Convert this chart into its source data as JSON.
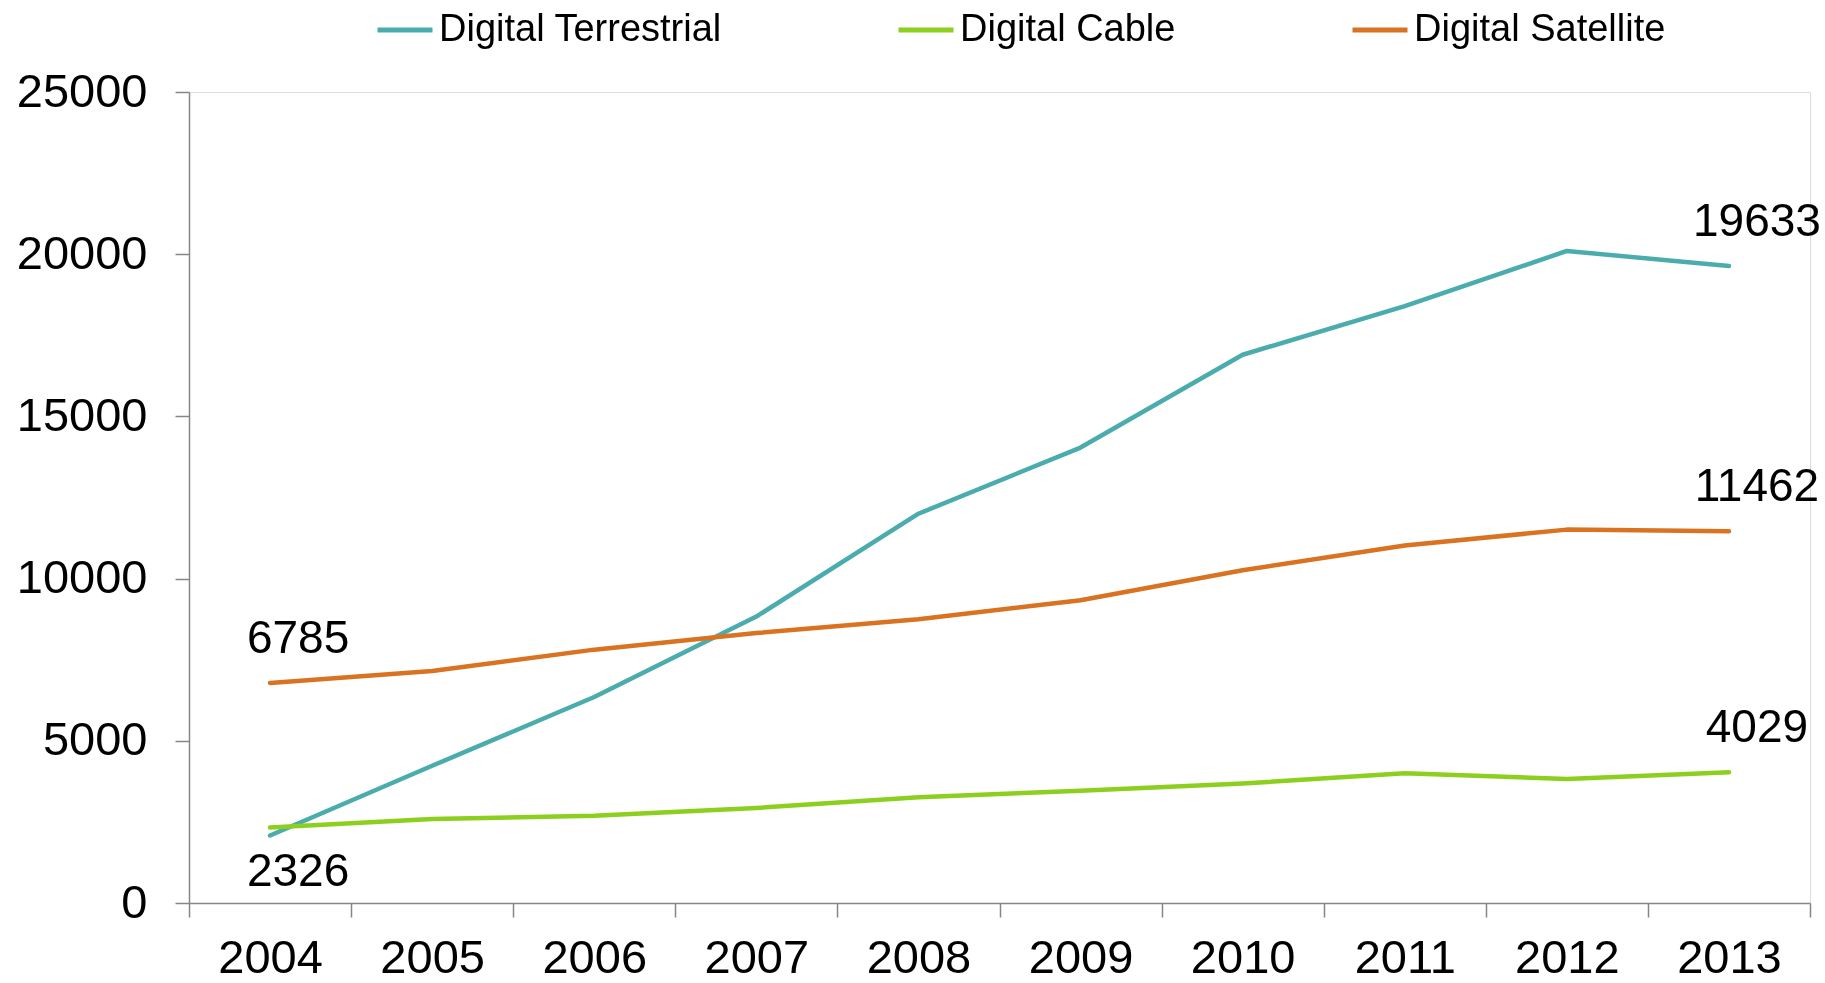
{
  "chart_data": {
    "type": "line",
    "categories": [
      "2004",
      "2005",
      "2006",
      "2007",
      "2008",
      "2009",
      "2010",
      "2011",
      "2012",
      "2013"
    ],
    "series": [
      {
        "name": "Digital Terrestrial",
        "color": "#4bacad",
        "values": [
          2080,
          4230,
          6350,
          8830,
          12000,
          14040,
          16900,
          18400,
          20100,
          19633
        ],
        "value_labels": [
          null,
          null,
          null,
          null,
          null,
          null,
          null,
          null,
          null,
          "19633"
        ]
      },
      {
        "name": "Digital Cable",
        "color": "#8dcf1f",
        "values": [
          2326,
          2590,
          2690,
          2930,
          3260,
          3460,
          3680,
          4000,
          3820,
          4029
        ],
        "value_labels": [
          "2326",
          null,
          null,
          null,
          null,
          null,
          null,
          null,
          null,
          "4029"
        ]
      },
      {
        "name": "Digital Satellite",
        "color": "#d97321",
        "values": [
          6785,
          7150,
          7810,
          8320,
          8750,
          9330,
          10260,
          11020,
          11510,
          11462
        ],
        "value_labels": [
          "6785",
          null,
          null,
          null,
          null,
          null,
          null,
          null,
          null,
          "11462"
        ]
      }
    ],
    "ylim": [
      0,
      25000
    ],
    "yticks": [
      0,
      5000,
      10000,
      15000,
      20000,
      25000
    ],
    "grid": false,
    "legend": "top",
    "marker": "none",
    "line_style": "solid"
  }
}
